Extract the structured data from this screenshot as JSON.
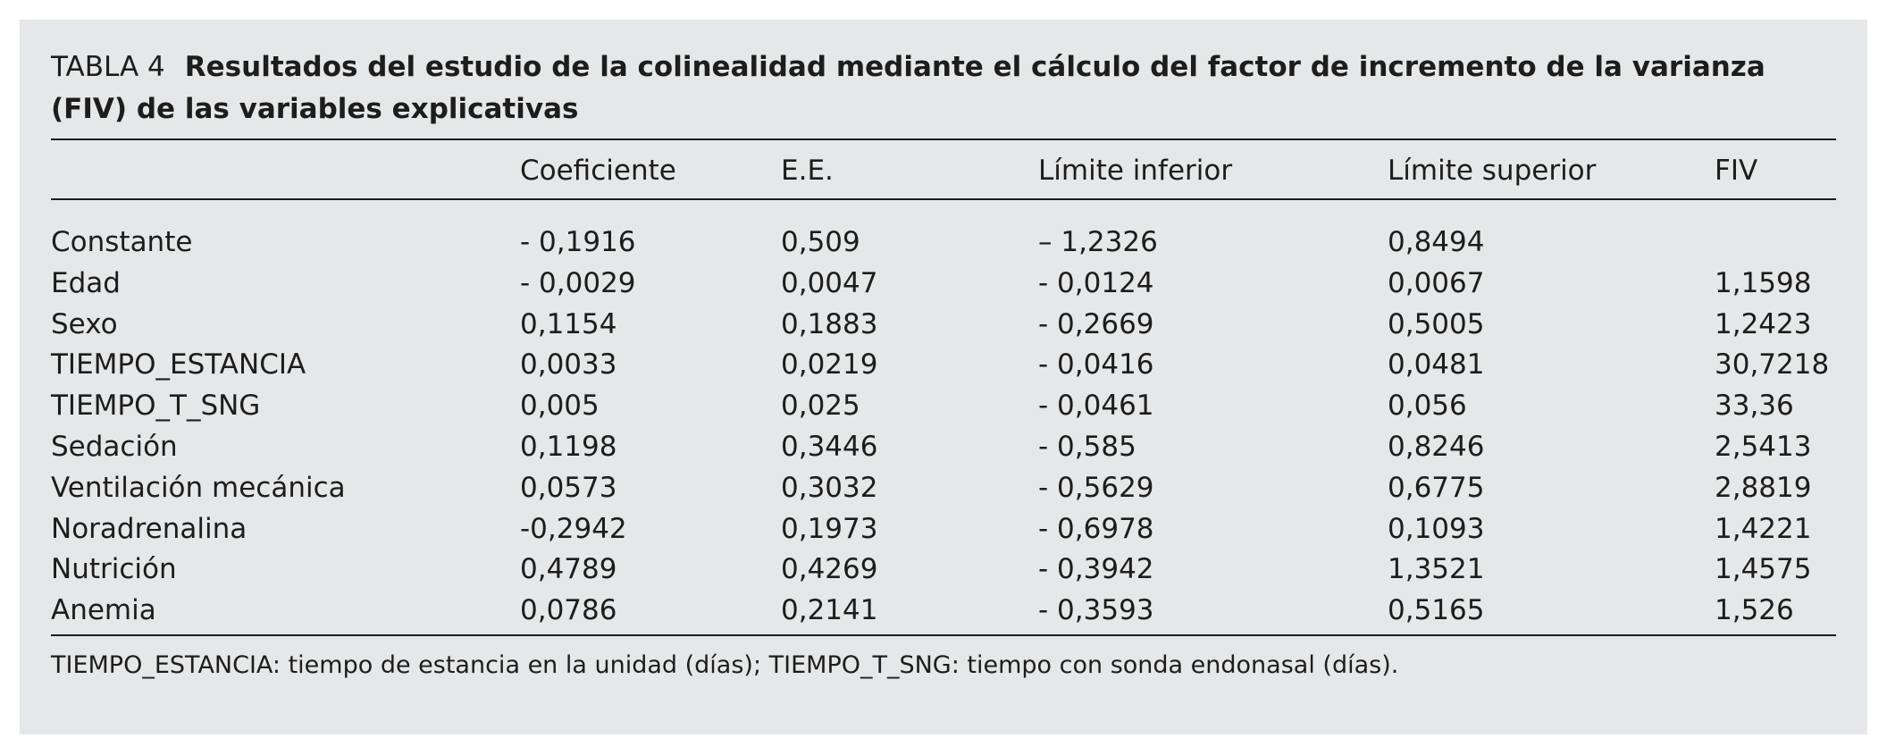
{
  "table": {
    "label": "TABLA 4",
    "title": "Resultados del estudio de la colinealidad mediante el cálculo del factor de incremento de la varianza (FIV) de las variables explicativas",
    "columns": [
      "",
      "Coeficiente",
      "E.E.",
      "Límite inferior",
      "Límite superior",
      "FIV"
    ],
    "rows": [
      [
        "Constante",
        "- 0,1916",
        "0,509",
        "– 1,2326",
        "0,8494",
        ""
      ],
      [
        "Edad",
        "- 0,0029",
        "0,0047",
        "- 0,0124",
        "0,0067",
        "1,1598"
      ],
      [
        "Sexo",
        "0,1154",
        "0,1883",
        "- 0,2669",
        "0,5005",
        "1,2423"
      ],
      [
        "TIEMPO_ESTANCIA",
        " 0,0033",
        "0,0219",
        "- 0,0416",
        "0,0481",
        "30,7218"
      ],
      [
        "TIEMPO_T_SNG",
        "0,005",
        "0,025",
        "- 0,0461",
        "0,056",
        "33,36"
      ],
      [
        "Sedación",
        "0,1198",
        "0,3446",
        "- 0,585",
        "0,8246",
        "2,5413"
      ],
      [
        "Ventilación mecánica",
        "0,0573",
        "0,3032",
        "- 0,5629",
        "0,6775",
        "2,8819"
      ],
      [
        "Noradrenalina",
        "-0,2942",
        "0,1973",
        "- 0,6978",
        "0,1093",
        "1,4221"
      ],
      [
        "Nutrición",
        "0,4789",
        "0,4269",
        "- 0,3942",
        "1,3521",
        "1,4575"
      ],
      [
        "Anemia",
        "0,0786",
        "0,2141",
        "- 0,3593",
        "0,5165",
        "1,526"
      ]
    ],
    "footnote": "TIEMPO_ESTANCIA: tiempo de estancia en la unidad (días); TIEMPO_T_SNG: tiempo con sonda endonasal (días)."
  }
}
